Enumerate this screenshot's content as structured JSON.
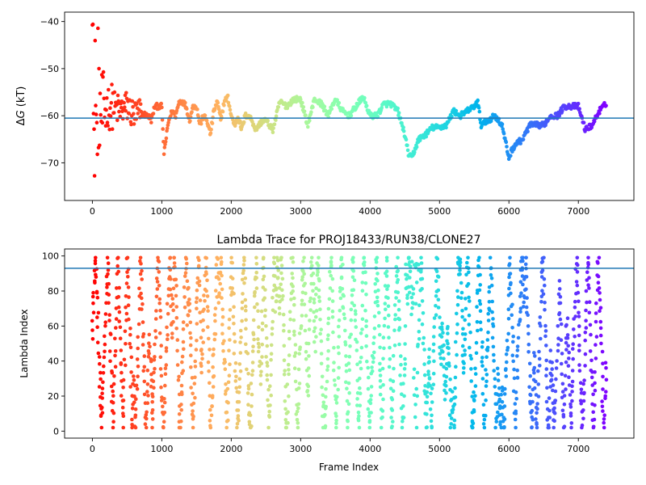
{
  "chart_data": [
    {
      "type": "scatter",
      "title": "",
      "xlabel": "",
      "ylabel": "ΔG (kT)",
      "ylabel_prefix": "Δ",
      "ylabel_italic": "G",
      "ylabel_suffix": " (kT)",
      "xlim": [
        -400,
        7800
      ],
      "ylim": [
        -78,
        -38
      ],
      "xticks": [
        0,
        1000,
        2000,
        3000,
        4000,
        5000,
        6000,
        7000
      ],
      "xtick_labels": [
        "0",
        "1000",
        "2000",
        "3000",
        "4000",
        "5000",
        "6000",
        "7000"
      ],
      "yticks": [
        -40,
        -50,
        -60,
        -70
      ],
      "ytick_labels": [
        "−40",
        "−50",
        "−60",
        "−70"
      ],
      "hline": -60.5,
      "hline_color": "#1f77b4",
      "colormap": "rainbow",
      "x_max": 7400,
      "trend": [
        [
          0,
          -58
        ],
        [
          50,
          -57
        ],
        [
          100,
          -58.5
        ],
        [
          150,
          -60
        ],
        [
          200,
          -58
        ],
        [
          300,
          -58
        ],
        [
          400,
          -59
        ],
        [
          500,
          -58
        ],
        [
          600,
          -60
        ],
        [
          700,
          -59.5
        ],
        [
          800,
          -60
        ],
        [
          850,
          -61
        ],
        [
          900,
          -58
        ],
        [
          950,
          -58
        ],
        [
          1000,
          -58
        ],
        [
          1030,
          -68
        ],
        [
          1050,
          -66
        ],
        [
          1100,
          -61
        ],
        [
          1150,
          -59
        ],
        [
          1200,
          -60
        ],
        [
          1250,
          -57
        ],
        [
          1300,
          -57
        ],
        [
          1350,
          -58
        ],
        [
          1400,
          -61
        ],
        [
          1450,
          -58
        ],
        [
          1500,
          -58
        ],
        [
          1550,
          -62
        ],
        [
          1600,
          -60
        ],
        [
          1650,
          -61
        ],
        [
          1700,
          -64
        ],
        [
          1750,
          -59
        ],
        [
          1800,
          -57
        ],
        [
          1850,
          -61
        ],
        [
          1900,
          -57
        ],
        [
          1950,
          -56
        ],
        [
          2000,
          -60
        ],
        [
          2050,
          -62
        ],
        [
          2100,
          -60
        ],
        [
          2150,
          -63
        ],
        [
          2200,
          -60
        ],
        [
          2250,
          -60
        ],
        [
          2300,
          -61
        ],
        [
          2350,
          -63
        ],
        [
          2400,
          -62
        ],
        [
          2450,
          -61
        ],
        [
          2500,
          -61
        ],
        [
          2600,
          -63
        ],
        [
          2700,
          -57
        ],
        [
          2800,
          -58
        ],
        [
          2900,
          -56.5
        ],
        [
          3000,
          -56.5
        ],
        [
          3100,
          -62
        ],
        [
          3200,
          -56.5
        ],
        [
          3300,
          -57.5
        ],
        [
          3400,
          -60
        ],
        [
          3450,
          -58
        ],
        [
          3500,
          -56.5
        ],
        [
          3600,
          -59
        ],
        [
          3700,
          -60
        ],
        [
          3800,
          -58
        ],
        [
          3900,
          -56
        ],
        [
          4000,
          -60
        ],
        [
          4100,
          -60
        ],
        [
          4200,
          -57.5
        ],
        [
          4300,
          -57.5
        ],
        [
          4400,
          -59
        ],
        [
          4500,
          -64
        ],
        [
          4550,
          -68
        ],
        [
          4600,
          -69
        ],
        [
          4700,
          -65
        ],
        [
          4800,
          -64
        ],
        [
          4900,
          -62.5
        ],
        [
          5000,
          -62.5
        ],
        [
          5100,
          -62
        ],
        [
          5200,
          -59
        ],
        [
          5300,
          -60
        ],
        [
          5400,
          -59
        ],
        [
          5500,
          -58
        ],
        [
          5550,
          -57
        ],
        [
          5600,
          -62
        ],
        [
          5700,
          -61
        ],
        [
          5800,
          -60
        ],
        [
          5900,
          -62
        ],
        [
          6000,
          -69
        ],
        [
          6050,
          -67
        ],
        [
          6100,
          -66
        ],
        [
          6200,
          -65
        ],
        [
          6300,
          -62
        ],
        [
          6400,
          -62
        ],
        [
          6500,
          -62
        ],
        [
          6600,
          -60
        ],
        [
          6700,
          -60
        ],
        [
          6800,
          -58
        ],
        [
          6900,
          -58
        ],
        [
          7000,
          -58
        ],
        [
          7100,
          -63
        ],
        [
          7200,
          -62
        ],
        [
          7300,
          -59
        ],
        [
          7400,
          -57.5
        ]
      ]
    },
    {
      "type": "scatter",
      "title": "Lambda Trace for PROJ18433/RUN38/CLONE27",
      "xlabel": "Frame Index",
      "ylabel": "Lambda Index",
      "xlim": [
        -400,
        7800
      ],
      "ylim": [
        -4,
        104
      ],
      "xticks": [
        0,
        1000,
        2000,
        3000,
        4000,
        5000,
        6000,
        7000
      ],
      "xtick_labels": [
        "0",
        "1000",
        "2000",
        "3000",
        "4000",
        "5000",
        "6000",
        "7000"
      ],
      "yticks": [
        0,
        20,
        40,
        60,
        80,
        100
      ],
      "ytick_labels": [
        "0",
        "20",
        "40",
        "60",
        "80",
        "100"
      ],
      "hline": 93,
      "hline_color": "#1f77b4",
      "colormap": "rainbow",
      "x_max": 7400,
      "lambda_range": [
        2,
        99
      ]
    }
  ]
}
